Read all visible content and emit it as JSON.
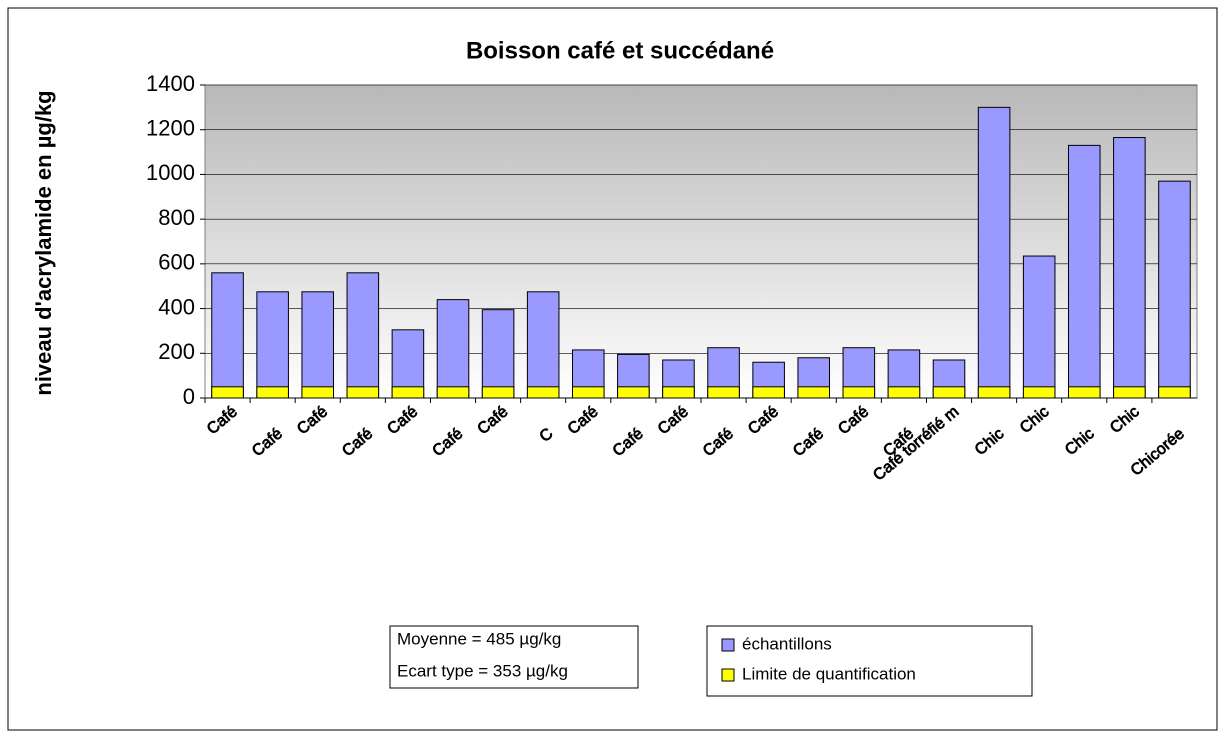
{
  "chart_data": {
    "type": "bar",
    "title": "Boisson café et succédané",
    "y_label": "niveau d'acrylamide en µg/kg",
    "categories": [
      "Café",
      "Café",
      "Café",
      "Café",
      "Café",
      "Café",
      "Café",
      "C",
      "Café",
      "Café",
      "Café",
      "Café",
      "Café",
      "Café",
      "Café",
      "Café",
      "Café torréfié m",
      "Chic",
      "Chic",
      "Chic",
      "Chic",
      "Chicorée"
    ],
    "series": [
      {
        "name": "échantillons",
        "color": "#9999ff",
        "values": [
          560,
          475,
          475,
          560,
          305,
          440,
          395,
          475,
          215,
          195,
          170,
          225,
          160,
          180,
          225,
          215,
          170,
          1300,
          635,
          1130,
          1165,
          970
        ]
      },
      {
        "name": "Limite de quantification",
        "color": "#ffff00",
        "values": [
          50,
          50,
          50,
          50,
          50,
          50,
          50,
          50,
          50,
          50,
          50,
          50,
          50,
          50,
          50,
          50,
          50,
          50,
          50,
          50,
          50,
          50
        ]
      }
    ],
    "ylim": [
      0,
      1400
    ],
    "yticks": [
      0,
      200,
      400,
      600,
      800,
      1000,
      1200,
      1400
    ],
    "grid": true,
    "annotations": [
      "Moyenne = 485 µg/kg",
      "Ecart type = 353 µg/kg"
    ]
  }
}
